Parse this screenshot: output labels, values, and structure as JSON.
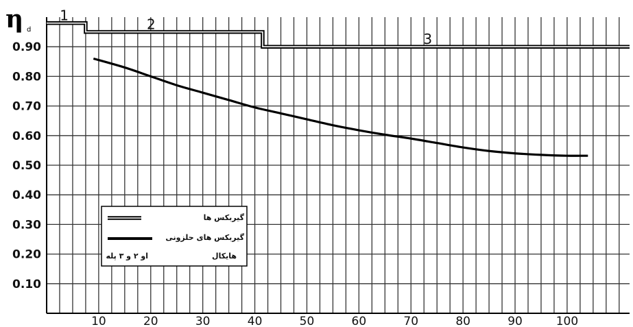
{
  "chart_data": {
    "type": "line",
    "ylabel": "η",
    "ylabel_subscript": "d",
    "xlim": [
      0,
      112
    ],
    "ylim": [
      0,
      1.0
    ],
    "x_ticks": [
      {
        "value": 10,
        "label": "10"
      },
      {
        "value": 20,
        "label": "20"
      },
      {
        "value": 30,
        "label": "30"
      },
      {
        "value": 40,
        "label": "40"
      },
      {
        "value": 50,
        "label": "50"
      },
      {
        "value": 60,
        "label": "60"
      },
      {
        "value": 70,
        "label": "70"
      },
      {
        "value": 80,
        "label": "80"
      },
      {
        "value": 90,
        "label": "90"
      },
      {
        "value": 100,
        "label": "100"
      }
    ],
    "y_ticks": [
      {
        "value": 0.9,
        "label": "0.90"
      },
      {
        "value": 0.8,
        "label": "0.80"
      },
      {
        "value": 0.7,
        "label": "0.70"
      },
      {
        "value": 0.6,
        "label": "0.60"
      },
      {
        "value": 0.5,
        "label": "0.50"
      },
      {
        "value": 0.4,
        "label": "0.40"
      },
      {
        "value": 0.3,
        "label": "0.30"
      },
      {
        "value": 0.2,
        "label": "0.20"
      },
      {
        "value": 0.1,
        "label": "0.10"
      }
    ],
    "grid": true,
    "series": [
      {
        "name": "گیربکس ها",
        "style": "double",
        "steps": [
          {
            "x0": 0,
            "x1": 7.5,
            "y": 0.98,
            "label": "1"
          },
          {
            "x0": 7.5,
            "x1": 41.5,
            "y": 0.95,
            "label": "2"
          },
          {
            "x0": 41.5,
            "x1": 112,
            "y": 0.9,
            "label": "3"
          }
        ]
      },
      {
        "name": "گیربکس های حلزونی",
        "style": "thick",
        "x": [
          9,
          15,
          20,
          25,
          30,
          35,
          40,
          45,
          50,
          55,
          60,
          65,
          70,
          75,
          80,
          85,
          90,
          95,
          100,
          104
        ],
        "y": [
          0.86,
          0.83,
          0.8,
          0.77,
          0.745,
          0.72,
          0.695,
          0.675,
          0.655,
          0.635,
          0.618,
          0.603,
          0.59,
          0.575,
          0.56,
          0.548,
          0.54,
          0.535,
          0.532,
          0.532
        ]
      }
    ],
    "legend": {
      "placement": "bottom-left",
      "rows": [
        {
          "text": "گیربکس ها",
          "swatch": "double"
        },
        {
          "text": "گیربکس های حلزونی",
          "swatch": "thick"
        },
        {
          "text_right": "هایکال",
          "text_left": "او ۲ و ۳ پله",
          "swatch": "none"
        }
      ]
    }
  }
}
